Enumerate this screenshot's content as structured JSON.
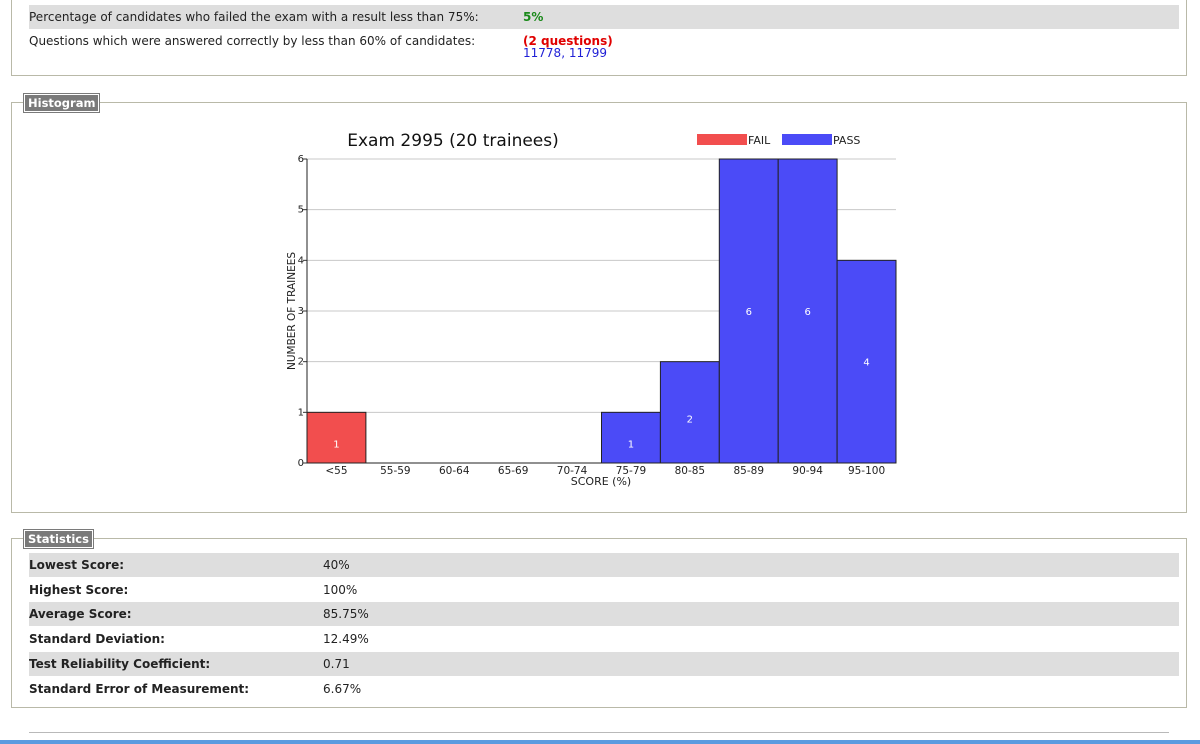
{
  "summary": {
    "failed_label": "Percentage of candidates who failed the exam with a result less than 75%:",
    "failed_value": "5%",
    "questions_label": "Questions which were answered correctly by less than 60% of candidates:",
    "questions_value": "(2 questions)",
    "question_links": [
      "11778",
      "11799"
    ]
  },
  "histogram": {
    "legend_title": "Histogram"
  },
  "chart_data": {
    "type": "bar",
    "title": "Exam 2995 (20 trainees)",
    "xlabel": "SCORE (%)",
    "ylabel": "NUMBER OF TRAINEES",
    "categories": [
      "<55",
      "55-59",
      "60-64",
      "65-69",
      "70-74",
      "75-79",
      "80-85",
      "85-89",
      "90-94",
      "95-100"
    ],
    "values": [
      1,
      0,
      0,
      0,
      0,
      1,
      2,
      6,
      6,
      4
    ],
    "ylim": [
      0,
      6
    ],
    "yticks": [
      "0",
      "1",
      "2",
      "3",
      "4",
      "5",
      "6"
    ],
    "grid": true,
    "legend": [
      {
        "name": "FAIL",
        "color": "#f24e4e"
      },
      {
        "name": "PASS",
        "color": "#4b4bf7"
      }
    ],
    "legend_position": "top-right",
    "fail_categories": [
      "<55"
    ],
    "colors": {
      "fail": "#f24e4e",
      "pass": "#4b4bf7"
    }
  },
  "statistics": {
    "legend_title": "Statistics",
    "rows": [
      {
        "label": "Lowest Score:",
        "value": "40%"
      },
      {
        "label": "Highest Score:",
        "value": "100%"
      },
      {
        "label": "Average Score:",
        "value": "85.75%"
      },
      {
        "label": "Standard Deviation:",
        "value": "12.49%"
      },
      {
        "label": "Test Reliability Coefficient:",
        "value": "0.71"
      },
      {
        "label": "Standard Error of Measurement:",
        "value": "6.67%"
      }
    ]
  }
}
